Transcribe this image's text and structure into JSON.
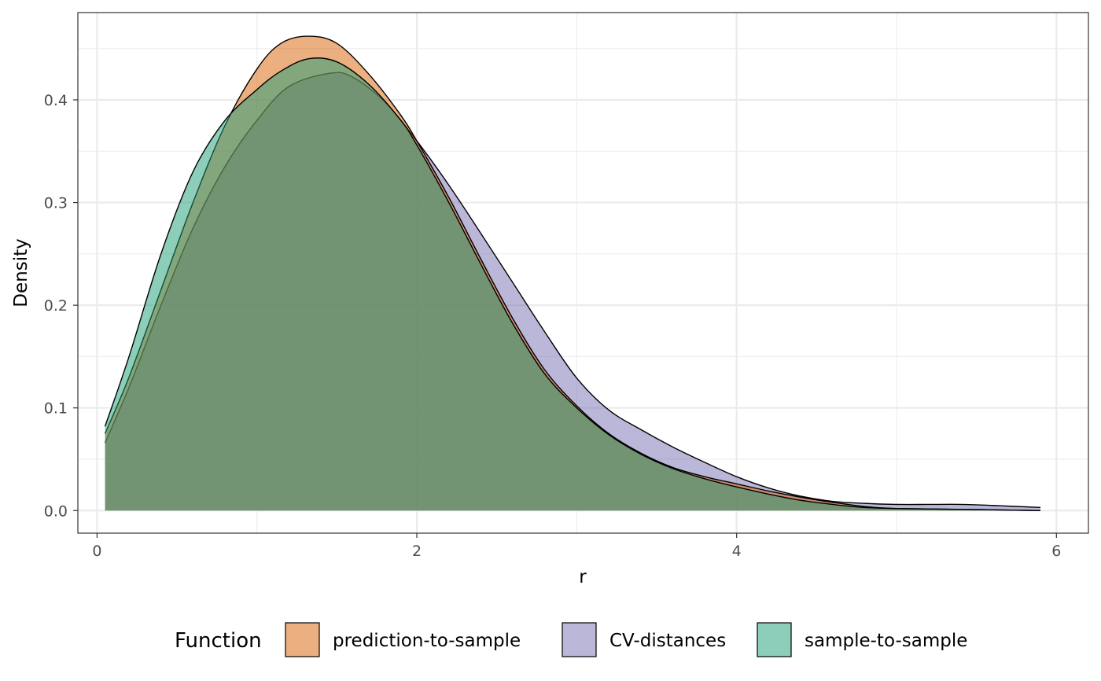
{
  "chart_data": {
    "type": "area",
    "subtype": "density",
    "xlabel": "r",
    "ylabel": "Density",
    "xlim": [
      -0.12,
      6.2
    ],
    "ylim": [
      -0.022,
      0.485
    ],
    "x_ticks": [
      0,
      2,
      4,
      6
    ],
    "x_tick_labels": [
      "0",
      "2",
      "4",
      "6"
    ],
    "y_ticks": [
      0.0,
      0.1,
      0.2,
      0.3,
      0.4
    ],
    "y_tick_labels": [
      "0.0",
      "0.1",
      "0.2",
      "0.3",
      "0.4"
    ],
    "grid": true,
    "legend": {
      "title": "Function",
      "position": "bottom",
      "entries": [
        "prediction-to-sample",
        "CV-distances",
        "sample-to-sample"
      ]
    },
    "series": [
      {
        "name": "CV-distances",
        "color": "#7570b3",
        "x": [
          0.05,
          0.2,
          0.4,
          0.6,
          0.8,
          1.0,
          1.2,
          1.46,
          1.6,
          1.8,
          2.0,
          2.2,
          2.4,
          2.6,
          2.8,
          3.0,
          3.2,
          3.4,
          3.6,
          3.8,
          4.0,
          4.2,
          4.4,
          4.6,
          4.8,
          5.0,
          5.2,
          5.4,
          5.6,
          5.9
        ],
        "y": [
          0.066,
          0.12,
          0.2,
          0.275,
          0.335,
          0.38,
          0.413,
          0.426,
          0.422,
          0.398,
          0.36,
          0.317,
          0.27,
          0.222,
          0.174,
          0.129,
          0.098,
          0.079,
          0.062,
          0.047,
          0.033,
          0.022,
          0.014,
          0.009,
          0.007,
          0.006,
          0.006,
          0.006,
          0.005,
          0.003
        ]
      },
      {
        "name": "prediction-to-sample",
        "color": "#d95f02",
        "x": [
          0.05,
          0.2,
          0.4,
          0.6,
          0.8,
          1.0,
          1.15,
          1.32,
          1.5,
          1.7,
          1.9,
          2.0,
          2.2,
          2.4,
          2.6,
          2.8,
          3.0,
          3.2,
          3.4,
          3.6,
          3.8,
          4.0,
          4.2,
          4.4,
          4.6,
          4.8,
          5.0,
          5.5,
          5.9
        ],
        "y": [
          0.075,
          0.13,
          0.215,
          0.3,
          0.375,
          0.43,
          0.455,
          0.462,
          0.455,
          0.425,
          0.385,
          0.36,
          0.305,
          0.245,
          0.187,
          0.137,
          0.102,
          0.075,
          0.056,
          0.042,
          0.033,
          0.026,
          0.019,
          0.013,
          0.008,
          0.004,
          0.002,
          0.001,
          0.0
        ]
      },
      {
        "name": "sample-to-sample",
        "color": "#1b9e77",
        "x": [
          0.05,
          0.2,
          0.4,
          0.6,
          0.8,
          1.0,
          1.15,
          1.32,
          1.5,
          1.7,
          1.9,
          2.0,
          2.2,
          2.4,
          2.6,
          2.8,
          3.0,
          3.2,
          3.4,
          3.6,
          3.8,
          4.0,
          4.2,
          4.4,
          4.6,
          4.8,
          5.0,
          5.5,
          5.9
        ],
        "y": [
          0.082,
          0.15,
          0.25,
          0.33,
          0.38,
          0.41,
          0.428,
          0.44,
          0.437,
          0.415,
          0.38,
          0.356,
          0.3,
          0.24,
          0.182,
          0.133,
          0.1,
          0.074,
          0.055,
          0.041,
          0.031,
          0.023,
          0.016,
          0.01,
          0.006,
          0.003,
          0.002,
          0.001,
          0.0
        ]
      }
    ]
  }
}
